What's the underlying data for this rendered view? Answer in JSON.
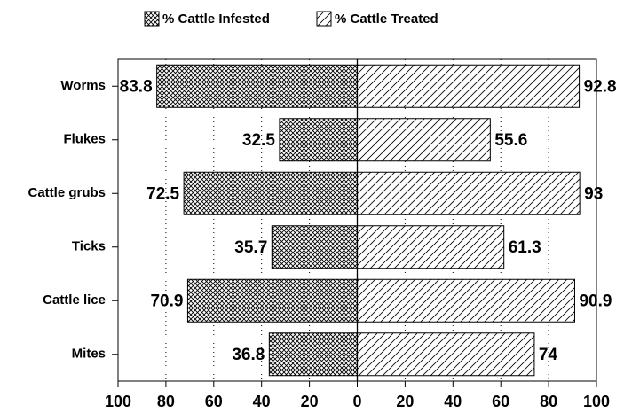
{
  "chart_data": {
    "type": "butterfly",
    "categories": [
      "Worms",
      "Flukes",
      "Cattle grubs",
      "Ticks",
      "Cattle lice",
      "Mites"
    ],
    "series": [
      {
        "name": "% Cattle Infested",
        "color": "#000000",
        "hatch": "crosshatch",
        "values": [
          83.8,
          32.5,
          72.5,
          35.7,
          70.9,
          36.8
        ]
      },
      {
        "name": "% Cattle Treated",
        "color": "#000000",
        "hatch": "diagonal",
        "values": [
          92.8,
          55.6,
          93,
          61.3,
          90.9,
          74
        ]
      }
    ],
    "xlim": [
      -100,
      100
    ],
    "xticks": [
      {
        "value": -100,
        "label": "100"
      },
      {
        "value": -80,
        "label": "80"
      },
      {
        "value": -60,
        "label": "60"
      },
      {
        "value": -40,
        "label": "40"
      },
      {
        "value": -20,
        "label": "20"
      },
      0,
      20,
      40,
      60,
      80,
      100
    ],
    "grid": true,
    "legend": "top"
  }
}
